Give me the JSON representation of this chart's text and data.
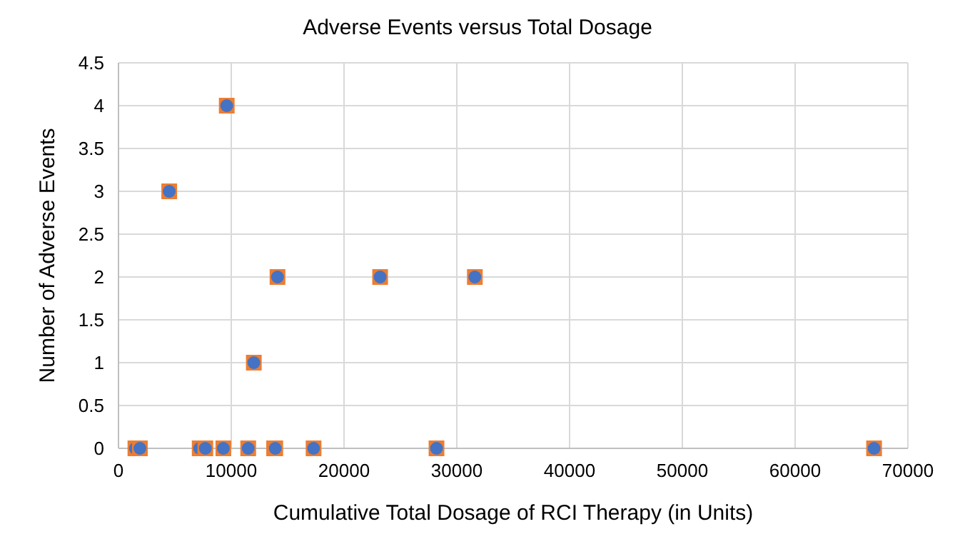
{
  "chart_data": {
    "type": "scatter",
    "title": "Adverse Events versus Total Dosage",
    "xlabel": "Cumulative Total Dosage of RCI Therapy (in Units)",
    "ylabel": "Number of Adverse Events",
    "x": [
      1500,
      1900,
      7200,
      7700,
      9300,
      11500,
      13800,
      13900,
      17300,
      28200,
      67000,
      4500,
      9600,
      12000,
      14100,
      23200,
      31600
    ],
    "series": [
      {
        "color": "#4472c4",
        "values": [
          0,
          0,
          0,
          0,
          0,
          0,
          0,
          0,
          0,
          0,
          0,
          3,
          4,
          1,
          2,
          2,
          2
        ]
      }
    ],
    "xlim": [
      0,
      70000
    ],
    "xticks": [
      0,
      10000,
      20000,
      30000,
      40000,
      50000,
      60000,
      70000
    ],
    "ylim": [
      0,
      4.5
    ],
    "yticks": [
      0,
      0.5,
      1,
      1.5,
      2,
      2.5,
      3,
      3.5,
      4,
      4.5
    ],
    "grid": true,
    "marker": "circle"
  }
}
